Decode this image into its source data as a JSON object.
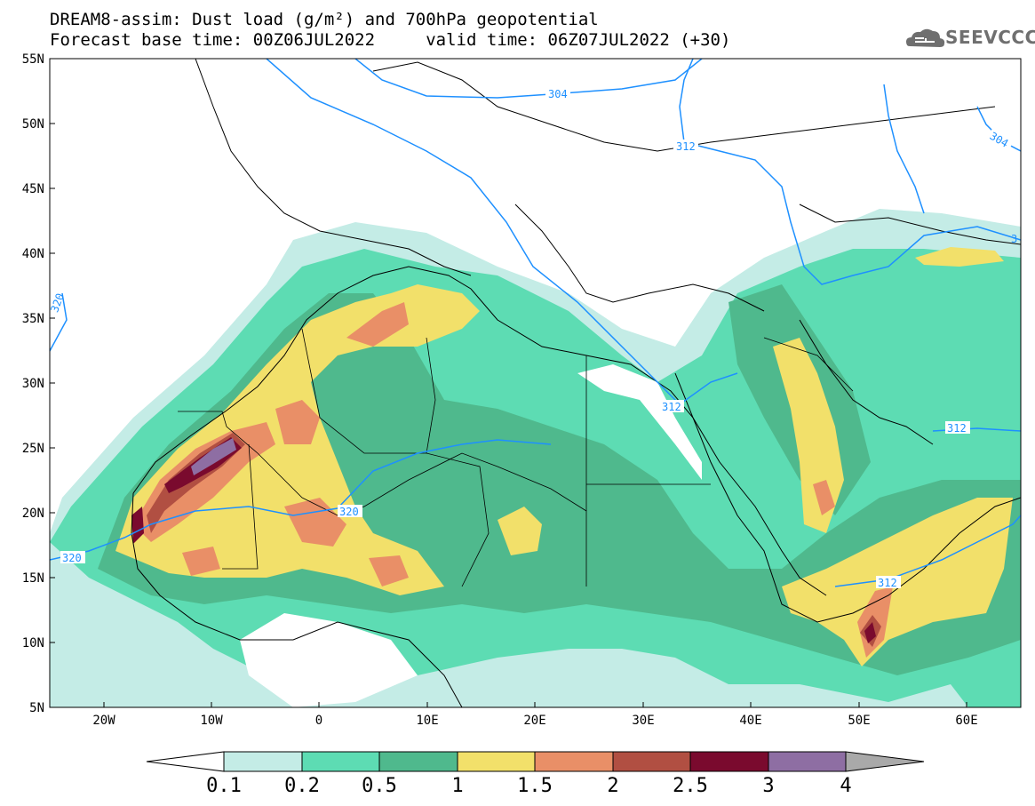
{
  "header": {
    "line1": "DREAM8-assim: Dust load (g/m²) and 700hPa geopotential",
    "line2": "Forecast base time: 00Z06JUL2022     valid time: 06Z07JUL2022 (+30)"
  },
  "logo": {
    "text": "SEEVCCC",
    "icon": "cloud-logo-icon"
  },
  "axes": {
    "lat_labels": [
      "55N",
      "50N",
      "45N",
      "40N",
      "35N",
      "30N",
      "25N",
      "20N",
      "15N",
      "10N",
      "5N"
    ],
    "lon_labels": [
      "20W",
      "10W",
      "0",
      "10E",
      "20E",
      "30E",
      "40E",
      "50E",
      "60E"
    ]
  },
  "contour_labels": [
    "304",
    "312",
    "304",
    "312",
    "320",
    "312",
    "312",
    "320",
    "320",
    "312",
    "3"
  ],
  "colorbar": {
    "ticks": [
      "0.1",
      "0.2",
      "0.5",
      "1",
      "1.5",
      "2",
      "2.5",
      "3",
      "4"
    ],
    "colors": [
      "#c4ece6",
      "#5ddcb3",
      "#4fb98d",
      "#f2e06a",
      "#e98f67",
      "#b14f42",
      "#7a0a2e",
      "#8e6ea3",
      "#a9a9a9"
    ]
  },
  "palette": {
    "l1": "#c4ece6",
    "l2": "#5ddcb3",
    "l3": "#4fb98d",
    "l4": "#f2e06a",
    "l5": "#e98f67",
    "l6": "#b14f42",
    "l7": "#7a0a2e",
    "l8": "#8e6ea3",
    "contour": "#1e90ff"
  }
}
